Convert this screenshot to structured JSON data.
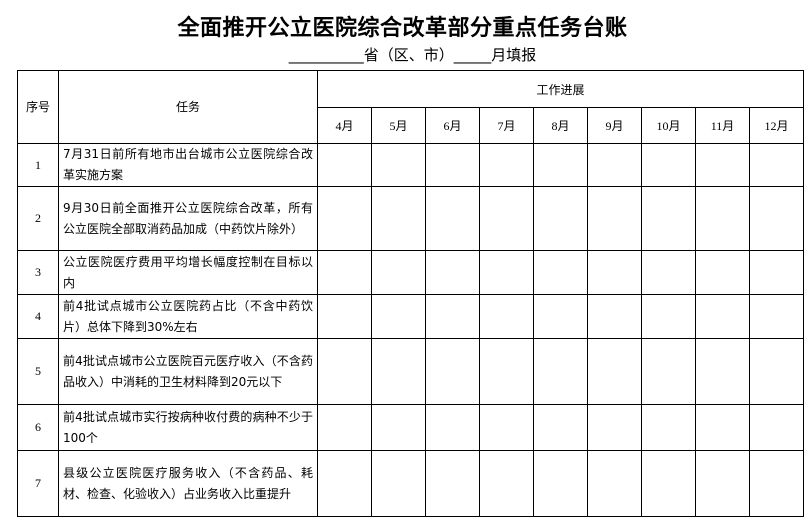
{
  "title": "全面推开公立医院综合改革部分重点任务台账",
  "subtitle": "__________省（区、市）_____月填报",
  "table": {
    "headers": {
      "seq": "序号",
      "task": "任务",
      "progress": "工作进展"
    },
    "months": [
      "4月",
      "5月",
      "6月",
      "7月",
      "8月",
      "9月",
      "10月",
      "11月",
      "12月"
    ],
    "rows": [
      {
        "seq": "1",
        "task": "7月31日前所有地市出台城市公立医院综合改革实施方案"
      },
      {
        "seq": "2",
        "task": "9月30日前全面推开公立医院综合改革，所有公立医院全部取消药品加成（中药饮片除外）"
      },
      {
        "seq": "3",
        "task": "公立医院医疗费用平均增长幅度控制在目标以内"
      },
      {
        "seq": "4",
        "task": "前4批试点城市公立医院药占比（不含中药饮片）总体下降到30%左右"
      },
      {
        "seq": "5",
        "task": "前4批试点城市公立医院百元医疗收入（不含药品收入）中消耗的卫生材料降到20元以下"
      },
      {
        "seq": "6",
        "task": "前4批试点城市实行按病种收付费的病种不少于100个"
      },
      {
        "seq": "7",
        "task": "县级公立医院医疗服务收入（不含药品、耗材、检查、化验收入）占业务收入比重提升"
      }
    ]
  }
}
